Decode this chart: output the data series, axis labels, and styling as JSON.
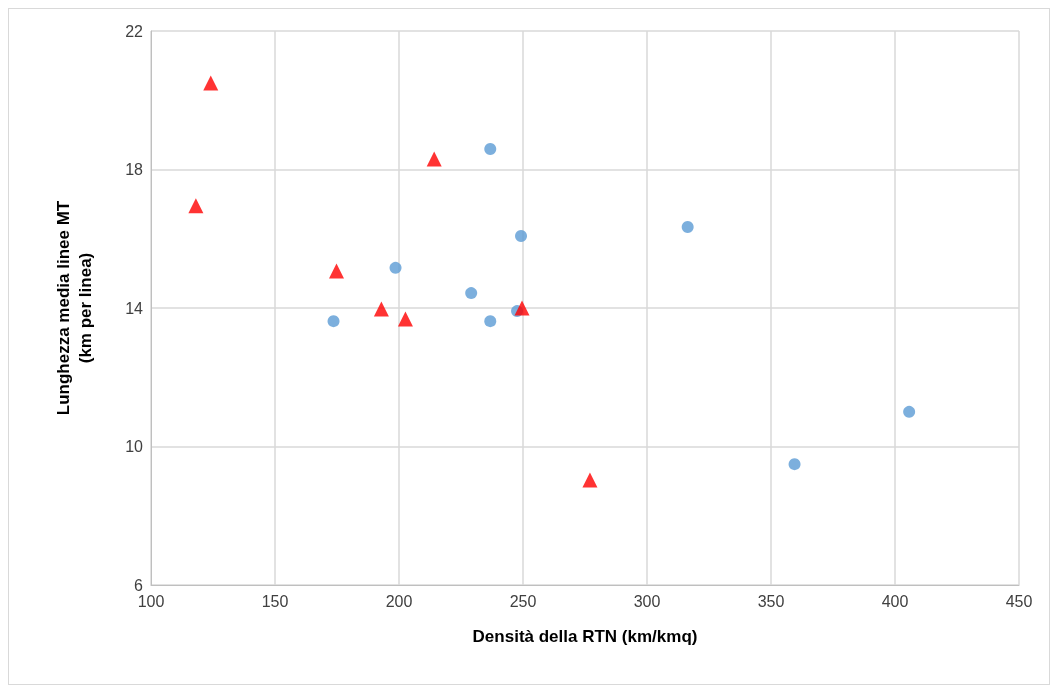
{
  "chart_data": {
    "type": "scatter",
    "xlabel": "Densità della RTN (km/kmq)",
    "ylabel": "Lunghezza media linee MT\n(km per linea)",
    "xlim": [
      100,
      450
    ],
    "xticks": [
      100,
      150,
      200,
      250,
      300,
      350,
      400,
      450
    ],
    "ylim": [
      6,
      22
    ],
    "yticks": [
      6,
      10,
      14,
      18,
      22
    ],
    "grid": true,
    "series": [
      {
        "color": "#5b9bd5",
        "marker": "circle",
        "x": [
          173.6,
          198.6,
          229.1,
          236.8,
          236.8,
          247.6,
          249.2,
          316.4,
          359.5,
          405.7
        ],
        "values": [
          13.62,
          15.16,
          14.43,
          18.59,
          13.62,
          13.91,
          16.08,
          16.34,
          9.49,
          11.0
        ]
      },
      {
        "color": "#ff0000",
        "marker": "triangle",
        "x": [
          124.1,
          214.2,
          174.8,
          192.9,
          202.6,
          249.6,
          277.0,
          118.1
        ],
        "values": [
          20.5,
          18.3,
          15.07,
          13.97,
          13.68,
          14.0,
          9.03,
          16.95
        ]
      }
    ]
  }
}
